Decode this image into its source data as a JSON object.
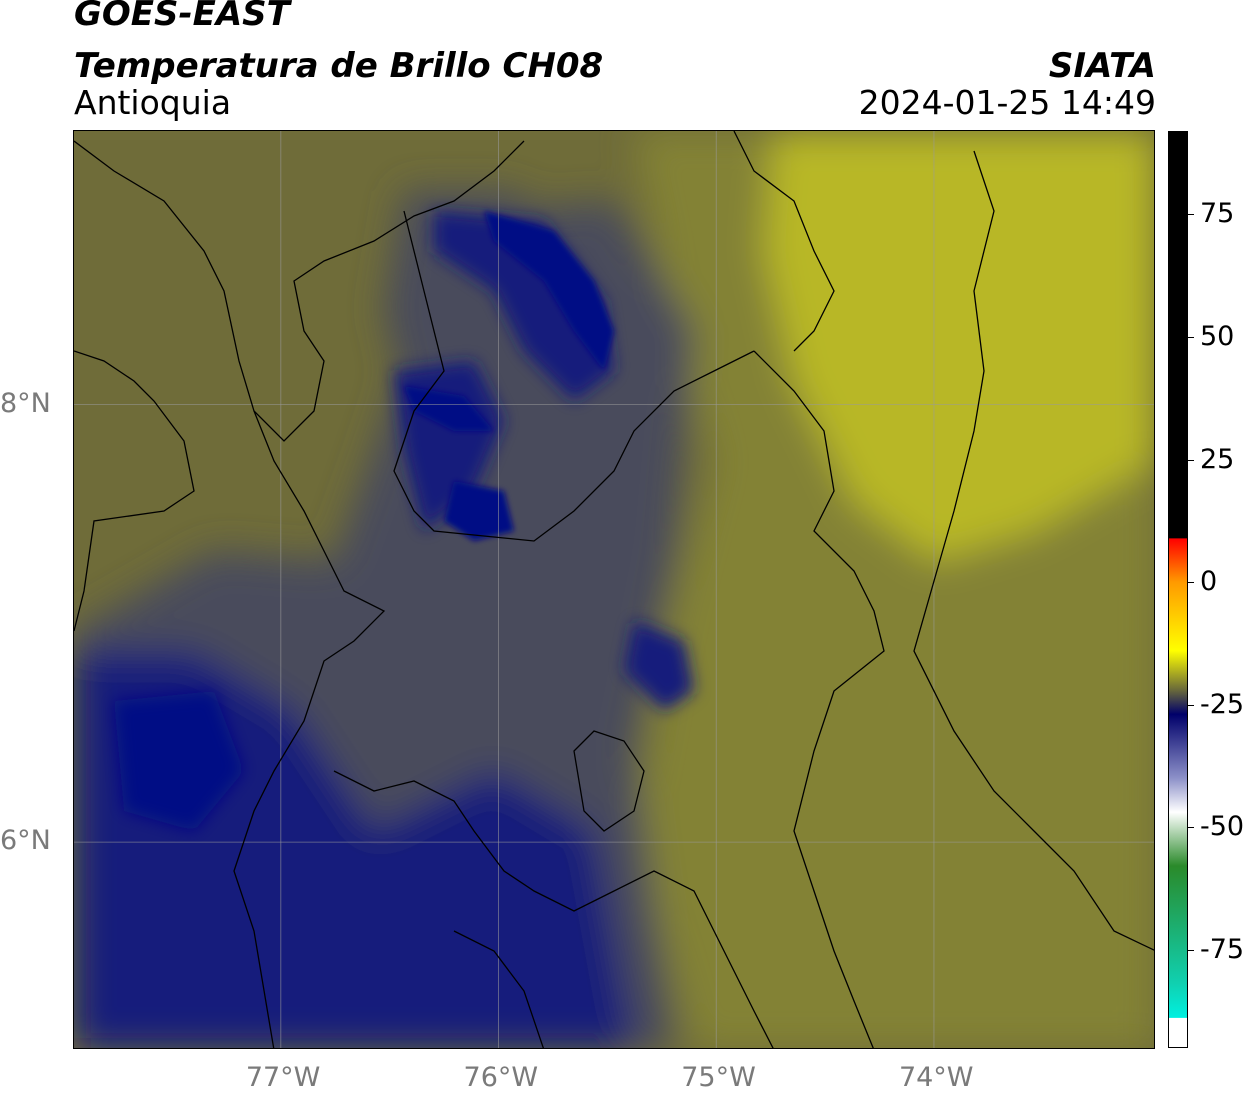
{
  "header": {
    "satellite": "GOES-EAST",
    "product": "Temperatura de Brillo CH08",
    "region": "Antioquia",
    "agency": "SIATA",
    "timestamp": "2024-01-25 14:49"
  },
  "map": {
    "lon_range": [
      -77.95,
      -72.98
    ],
    "lat_range": [
      5.05,
      9.25
    ],
    "lon_ticks": [
      {
        "value": -77,
        "label": "77°W"
      },
      {
        "value": -76,
        "label": "76°W"
      },
      {
        "value": -75,
        "label": "75°W"
      },
      {
        "value": -74,
        "label": "74°W"
      }
    ],
    "lat_ticks": [
      {
        "value": 8,
        "label": "8°N"
      },
      {
        "value": 6,
        "label": "6°N"
      }
    ],
    "gridlines": true,
    "colors": {
      "background": "#6f6c39",
      "warm_olive": "#838236",
      "yellow_band": "#b8b726",
      "cold_navy": "#121a7c",
      "very_cold": "#000a85",
      "mid_slate": "#4a4c5c",
      "border": "#000000",
      "gridline": "#9a9a9a"
    }
  },
  "colorbar": {
    "range": [
      -95,
      92
    ],
    "ticks": [
      {
        "value": 75,
        "label": "75"
      },
      {
        "value": 50,
        "label": "50"
      },
      {
        "value": 25,
        "label": "25"
      },
      {
        "value": 0,
        "label": "0"
      },
      {
        "value": -25,
        "label": "-25"
      },
      {
        "value": -50,
        "label": "-50"
      },
      {
        "value": -75,
        "label": "-75"
      }
    ],
    "stops": [
      {
        "value": 92,
        "color": "#000000"
      },
      {
        "value": 9,
        "color": "#000000"
      },
      {
        "value": 8.9,
        "color": "#ff0000"
      },
      {
        "value": 0,
        "color": "#ff9a00"
      },
      {
        "value": -14,
        "color": "#ffff00"
      },
      {
        "value": -22,
        "color": "#6a6a3a"
      },
      {
        "value": -27,
        "color": "#00006a"
      },
      {
        "value": -40,
        "color": "#8c90c8"
      },
      {
        "value": -47,
        "color": "#ffffff"
      },
      {
        "value": -58,
        "color": "#2a8a2a"
      },
      {
        "value": -82,
        "color": "#10d0b0"
      },
      {
        "value": -89,
        "color": "#00f0e0"
      },
      {
        "value": -89.1,
        "color": "#ffffff"
      },
      {
        "value": -95,
        "color": "#ffffff"
      }
    ]
  }
}
